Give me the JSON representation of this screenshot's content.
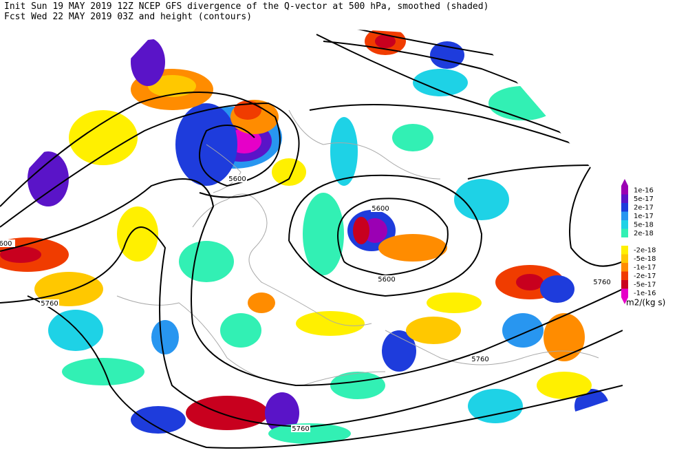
{
  "header": {
    "line1": "Init  Sun 19 MAY 2019 12Z  NCEP GFS divergence of the Q-vector at 500 hPa, smoothed (shaded)",
    "line2": "Fcst Wed 22 MAY 2019 03Z  and height (contours)"
  },
  "colorbar": {
    "entries": [
      {
        "label": "1e-16",
        "color": "#9b00b4"
      },
      {
        "label": "5e-17",
        "color": "#5a14c8"
      },
      {
        "label": "2e-17",
        "color": "#1e3cdc"
      },
      {
        "label": "1e-17",
        "color": "#2896f0"
      },
      {
        "label": "5e-18",
        "color": "#1ed2e6"
      },
      {
        "label": "2e-18",
        "color": "#32f0b4"
      },
      {
        "label": "-2e-18",
        "color": "#fff000"
      },
      {
        "label": "-5e-18",
        "color": "#ffc800"
      },
      {
        "label": "-1e-17",
        "color": "#ff8c00"
      },
      {
        "label": "-2e-17",
        "color": "#f03c00"
      },
      {
        "label": "-5e-17",
        "color": "#c8001e"
      },
      {
        "label": "-1e-16",
        "color": "#e600c8"
      }
    ],
    "units": "m2/(kg s)"
  },
  "contour_labels": [
    "5600",
    "5600",
    "5600",
    "600",
    "5760",
    "5760",
    "5760",
    "5760"
  ]
}
